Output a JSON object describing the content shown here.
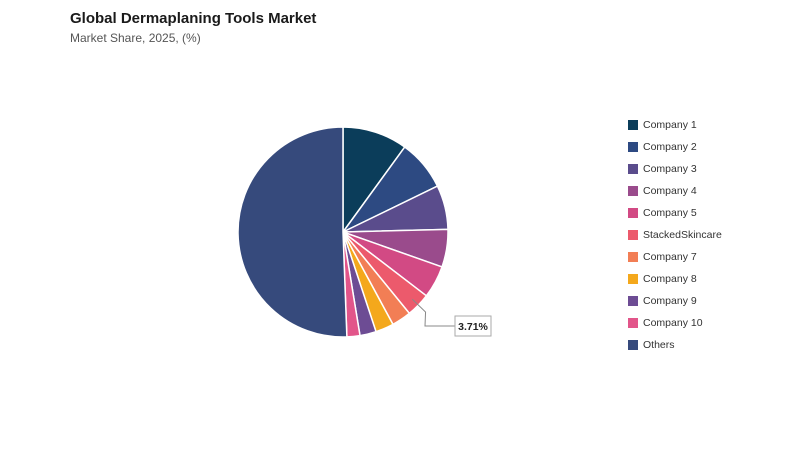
{
  "header": {
    "title": "Global Dermaplaning Tools Market",
    "subtitle": "Market Share, 2025, (%)"
  },
  "chart_data": {
    "type": "pie",
    "title": "Global Dermaplaning Tools Market",
    "subtitle": "Market Share, 2025, (%)",
    "legend_position": "right",
    "start_angle_deg": 0,
    "direction": "clockwise",
    "slices": [
      {
        "label": "Company 1",
        "value": 10.0,
        "color": "#0b3d5a"
      },
      {
        "label": "Company 2",
        "value": 7.8,
        "color": "#2d4a82"
      },
      {
        "label": "Company 3",
        "value": 6.8,
        "color": "#5a4c8c"
      },
      {
        "label": "Company 4",
        "value": 5.8,
        "color": "#9a4b8c"
      },
      {
        "label": "Company 5",
        "value": 5.0,
        "color": "#d24a84"
      },
      {
        "label": "StackedSkincare",
        "value": 3.71,
        "color": "#ec5a6c"
      },
      {
        "label": "Company 7",
        "value": 3.0,
        "color": "#f27e55"
      },
      {
        "label": "Company 8",
        "value": 2.8,
        "color": "#f4a81c"
      },
      {
        "label": "Company 9",
        "value": 2.5,
        "color": "#6d4c94"
      },
      {
        "label": "Company 10",
        "value": 2.0,
        "color": "#e2558a"
      },
      {
        "label": "Others",
        "value": 50.59,
        "color": "#364a7c"
      }
    ],
    "annotations": [
      {
        "slice": "StackedSkincare",
        "text": "3.71%"
      }
    ]
  }
}
